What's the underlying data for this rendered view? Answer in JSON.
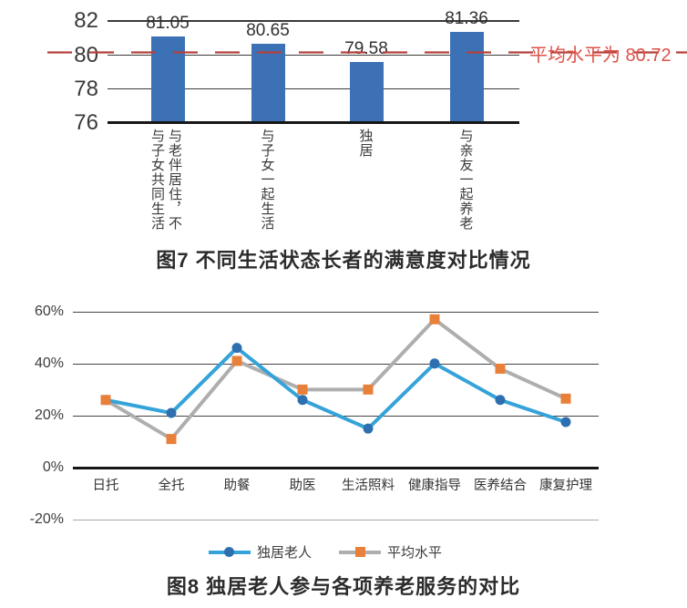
{
  "colors": {
    "bar": "#3c72b5",
    "line_blue": "#35a3d9",
    "marker_blue": "#2e6fb0",
    "line_gray": "#aeaeae",
    "marker_orange": "#e8803a",
    "average_line_red": "#b5403c",
    "annotation_red": "#dd5147"
  },
  "chart_data": [
    {
      "type": "bar",
      "title": "图7 不同生活状态长者的满意度对比情况",
      "categories": [
        "与老伴居住，不与子女共同生活",
        "与子女一起生活",
        "独居",
        "与亲友一起养老"
      ],
      "categories_columns": [
        [
          "与老伴居住，不",
          "与子女共同生活"
        ],
        [
          "与子女一起生活"
        ],
        [
          "独居"
        ],
        [
          "与亲友一起养老"
        ]
      ],
      "values": [
        81.05,
        80.65,
        79.58,
        81.36
      ],
      "data_labels": [
        "81.05",
        "80.65",
        "79.58",
        "81.36"
      ],
      "ylim": [
        76,
        82
      ],
      "yticks": [
        82,
        80,
        78,
        76
      ],
      "ytick_labels": [
        "82",
        "80",
        "78",
        "76"
      ],
      "grid": "horizontal",
      "average_line": {
        "value": 80.72,
        "label": "平均水平为 80.72",
        "style": "red-dashed"
      }
    },
    {
      "type": "line",
      "title": "图8 独居老人参与各项养老服务的对比",
      "categories": [
        "日托",
        "全托",
        "助餐",
        "助医",
        "生活照料",
        "健康指导",
        "医养结合",
        "康复护理"
      ],
      "series": [
        {
          "name": "独居老人",
          "marker": "circle",
          "values": [
            26,
            21,
            46,
            26,
            15,
            40,
            26,
            17.5
          ]
        },
        {
          "name": "平均水平",
          "marker": "square",
          "values": [
            26,
            11,
            41,
            30,
            30,
            57,
            38,
            26.5
          ]
        }
      ],
      "unit": "%",
      "ylim": [
        -20,
        60
      ],
      "yticks": [
        60,
        40,
        20,
        0,
        -20
      ],
      "ytick_labels": [
        "60%",
        "40%",
        "20%",
        "0%",
        "-20%"
      ],
      "grid": "horizontal",
      "legend_position": "bottom"
    }
  ]
}
